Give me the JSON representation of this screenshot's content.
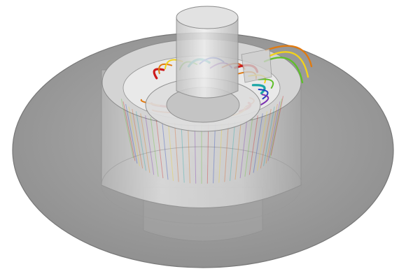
{
  "scene": {
    "colors": {
      "background": "#ffffff",
      "plate": "#9a9a9a",
      "plate_edge": "#7a7a7a",
      "housing": "#cfcfcf",
      "housing_dark": "#a9a9a9",
      "glass": "#dcdcdc",
      "glass_edge": "#8c8c8c"
    },
    "streamline_palette": [
      "#cc1a1a",
      "#e07a10",
      "#f2d21a",
      "#5fbf2a",
      "#1aa6a6",
      "#1f3fbf",
      "#7a2fb0",
      "#d9581a"
    ]
  }
}
